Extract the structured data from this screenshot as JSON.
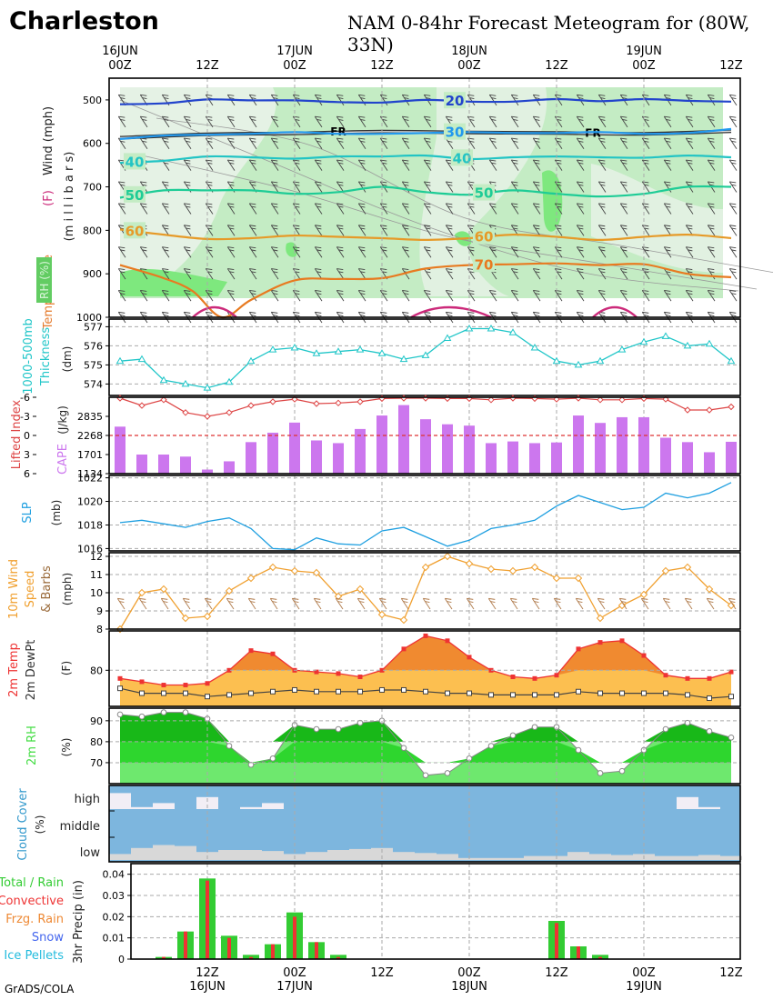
{
  "header": {
    "location": "Charleston",
    "title": "NAM 0-84hr Forecast Meteogram for (80W, 33N)",
    "credit": "GrADS/COLA"
  },
  "time_axis": {
    "top_ticks": [
      {
        "hour": 0,
        "l1": "16JUN",
        "l2": "00Z"
      },
      {
        "hour": 12,
        "l1": "",
        "l2": "12Z"
      },
      {
        "hour": 24,
        "l1": "17JUN",
        "l2": "00Z"
      },
      {
        "hour": 36,
        "l1": "",
        "l2": "12Z"
      },
      {
        "hour": 48,
        "l1": "18JUN",
        "l2": "00Z"
      },
      {
        "hour": 60,
        "l1": "",
        "l2": "12Z"
      },
      {
        "hour": 72,
        "l1": "19JUN",
        "l2": "00Z"
      },
      {
        "hour": 84,
        "l1": "",
        "l2": "12Z"
      }
    ],
    "bottom_ticks": [
      {
        "hour": 12,
        "l1": "12Z",
        "l2": "16JUN"
      },
      {
        "hour": 24,
        "l1": "00Z",
        "l2": "17JUN"
      },
      {
        "hour": 36,
        "l1": "12Z",
        "l2": ""
      },
      {
        "hour": 48,
        "l1": "00Z",
        "l2": "18JUN"
      },
      {
        "hour": 60,
        "l1": "12Z",
        "l2": ""
      },
      {
        "hour": 72,
        "l1": "00Z",
        "l2": "19JUN"
      },
      {
        "hour": 84,
        "l1": "12Z",
        "l2": ""
      }
    ]
  },
  "panel_labels": {
    "p1": {
      "wind": "Wind (mph)",
      "f": "(F)",
      "temperature": "Temperature",
      "mb": "(m i l l i b a r s)",
      "rh": "RH (%)"
    },
    "p2": {
      "l1": "1000-500mb",
      "l2": "Thickness",
      "unit": "(dm)"
    },
    "p3": {
      "li": "Lifted Index",
      "cape": "CAPE",
      "unit": "(J/kg)"
    },
    "p4": {
      "l1": "SLP",
      "unit": "(mb)"
    },
    "p5": {
      "l1": "10m Wind",
      "l2": "Speed",
      "l3": "& Barbs",
      "unit": "(mph)"
    },
    "p6": {
      "l1": "2m Temp",
      "l2": "2m DewPt",
      "unit": "(F)"
    },
    "p7": {
      "l1": "2m RH",
      "unit": "(%)"
    },
    "p8": {
      "l1": "Cloud Cover",
      "unit": "(%)",
      "high": "high",
      "middle": "middle",
      "low": "low"
    },
    "p9": {
      "total": "Total / Rain",
      "conv": "Convective",
      "frzg": "Frzg. Rain",
      "snow": "Snow",
      "ice": "Ice Pellets",
      "y1": "3hr Precip",
      "y2": "(in)"
    }
  },
  "colors": {
    "li": "#dd4444",
    "cape": "#cc77ee",
    "slp": "#1e9fe0",
    "wind": "#f0a030",
    "temp": "#ee3333",
    "temp_fill": "#f08a30",
    "dew_fill": "#fcbf50",
    "rh_light": "#6ee86e",
    "rh_mid": "#2ed62e",
    "rh_dark": "#18b818",
    "thick": "#20c6c8",
    "cloud_bg": "#7db6de",
    "precip_total": "#33cc33",
    "precip_conv": "#ee3333"
  },
  "chart_data": [
    {
      "type": "contour",
      "name": "upper-air",
      "ylabel": "millibars",
      "yticks": [
        500,
        600,
        700,
        800,
        900,
        1000
      ],
      "ylim": [
        1000,
        450
      ],
      "temperature_contours": [
        {
          "label": "20",
          "color": "#2244cc",
          "hours": [
            0,
            6,
            12,
            18,
            24,
            30,
            36,
            42,
            48,
            54,
            60,
            66,
            72,
            78,
            84
          ],
          "mb": [
            510,
            508,
            499,
            501,
            501,
            505,
            506,
            500,
            504,
            504,
            498,
            503,
            498,
            502,
            504
          ]
        },
        {
          "label": "30",
          "color": "#2299ee",
          "hours": [
            0,
            6,
            12,
            18,
            24,
            30,
            36,
            42,
            48,
            54,
            60,
            66,
            72,
            78,
            84
          ],
          "mb": [
            590,
            582,
            580,
            578,
            574,
            578,
            578,
            576,
            574,
            576,
            576,
            574,
            578,
            576,
            567
          ]
        },
        {
          "label": "40",
          "color": "#22c4c4",
          "hours": [
            0,
            6,
            12,
            18,
            24,
            30,
            36,
            42,
            48,
            54,
            60,
            66,
            72,
            78,
            84
          ],
          "mb": [
            645,
            640,
            630,
            632,
            635,
            630,
            630,
            628,
            636,
            632,
            630,
            632,
            633,
            628,
            632
          ]
        },
        {
          "label": "50",
          "color": "#1ecc96",
          "hours": [
            0,
            6,
            12,
            18,
            24,
            30,
            36,
            42,
            48,
            54,
            60,
            66,
            72,
            78,
            84
          ],
          "mb": [
            725,
            708,
            708,
            708,
            716,
            712,
            700,
            712,
            718,
            708,
            716,
            722,
            716,
            700,
            700
          ]
        },
        {
          "label": "60",
          "color": "#e69a28",
          "hours": [
            0,
            6,
            12,
            18,
            24,
            30,
            36,
            42,
            48,
            54,
            60,
            66,
            72,
            78,
            84
          ],
          "mb": [
            798,
            810,
            820,
            818,
            812,
            815,
            818,
            822,
            818,
            810,
            815,
            822,
            815,
            810,
            818
          ]
        },
        {
          "label": "70",
          "color": "#e87a20",
          "hours": [
            0,
            6,
            10,
            14,
            18,
            24,
            30,
            36,
            42,
            48,
            54,
            60,
            66,
            72,
            78,
            84
          ],
          "mb": [
            880,
            910,
            940,
            1000,
            960,
            915,
            912,
            910,
            888,
            880,
            878,
            876,
            880,
            878,
            900,
            908
          ]
        }
      ],
      "freezing_level": {
        "label": "FR",
        "hours": [
          0,
          12,
          24,
          36,
          48,
          60,
          72,
          84
        ],
        "mb": [
          587,
          579,
          577,
          573,
          575,
          576,
          578,
          572
        ]
      }
    },
    {
      "type": "line",
      "name": "1000-500mb thickness",
      "ylabel": "(dm)",
      "yticks": [
        574,
        575,
        576,
        577
      ],
      "ylim": [
        573.4,
        577.4
      ],
      "x": [
        0,
        3,
        6,
        9,
        12,
        15,
        18,
        21,
        24,
        27,
        30,
        33,
        36,
        39,
        42,
        45,
        48,
        51,
        54,
        57,
        60,
        63,
        66,
        69,
        72,
        75,
        78,
        81,
        84
      ],
      "values": [
        575.2,
        575.3,
        574.2,
        574.0,
        573.8,
        574.1,
        575.2,
        575.8,
        575.9,
        575.6,
        575.7,
        575.8,
        575.6,
        575.3,
        575.5,
        576.4,
        576.9,
        576.9,
        576.7,
        575.9,
        575.2,
        575.0,
        575.2,
        575.8,
        576.2,
        576.5,
        576.0,
        576.1,
        575.2
      ]
    },
    {
      "type": "line",
      "name": "Lifted Index",
      "ylabel": "Lifted Index",
      "yticks": [
        -6,
        -3,
        0,
        3,
        6
      ],
      "ylim": [
        6,
        -6
      ],
      "x": [
        0,
        3,
        6,
        9,
        12,
        15,
        18,
        21,
        24,
        27,
        30,
        33,
        36,
        39,
        42,
        45,
        48,
        51,
        54,
        57,
        60,
        63,
        66,
        69,
        72,
        75,
        78,
        81,
        84
      ],
      "values": [
        -6.5,
        -4.7,
        -5.6,
        -3.6,
        -3.0,
        -3.6,
        -4.7,
        -5.3,
        -5.7,
        -5.0,
        -5.1,
        -5.3,
        -5.8,
        -5.9,
        -6.0,
        -5.8,
        -5.8,
        -5.6,
        -5.9,
        -5.8,
        -5.7,
        -5.9,
        -5.6,
        -5.6,
        -5.8,
        -5.7,
        -4.0,
        -4.0,
        -4.5
      ]
    },
    {
      "type": "bar",
      "name": "CAPE",
      "ylabel": "CAPE (J/kg)",
      "yticks": [
        1134,
        1701,
        2268,
        2835
      ],
      "ylim": [
        1134,
        3402
      ],
      "x": [
        0,
        3,
        6,
        9,
        12,
        15,
        18,
        21,
        24,
        27,
        30,
        33,
        36,
        39,
        42,
        45,
        48,
        51,
        54,
        57,
        60,
        63,
        66,
        69,
        72,
        75,
        78,
        81,
        84
      ],
      "values": [
        2530,
        1701,
        1701,
        1640,
        1255,
        1500,
        2070,
        2350,
        2650,
        2120,
        2040,
        2460,
        2860,
        3170,
        2750,
        2600,
        2560,
        2040,
        2090,
        2040,
        2060,
        2860,
        2640,
        2810,
        2810,
        2200,
        2070,
        1770,
        2080
      ]
    },
    {
      "type": "line",
      "name": "SLP",
      "ylabel": "(mb)",
      "yticks": [
        1016,
        1018,
        1020,
        1022
      ],
      "ylim": [
        1015.8,
        1022.2
      ],
      "x": [
        0,
        3,
        6,
        9,
        12,
        15,
        18,
        21,
        24,
        27,
        30,
        33,
        36,
        39,
        42,
        45,
        48,
        51,
        54,
        57,
        60,
        63,
        66,
        69,
        72,
        75,
        78,
        81,
        84
      ],
      "values": [
        1018.2,
        1018.4,
        1018.1,
        1017.8,
        1018.3,
        1018.6,
        1017.7,
        1016.0,
        1015.9,
        1016.9,
        1016.4,
        1016.3,
        1017.5,
        1017.8,
        1017.0,
        1016.2,
        1016.7,
        1017.7,
        1018.0,
        1018.4,
        1019.6,
        1020.5,
        1019.9,
        1019.3,
        1019.5,
        1020.7,
        1020.3,
        1020.7,
        1021.6
      ]
    },
    {
      "type": "line",
      "name": "10m Wind Speed",
      "ylabel": "(mph)",
      "yticks": [
        8,
        9,
        10,
        11,
        12
      ],
      "ylim": [
        8,
        12.2
      ],
      "x": [
        0,
        3,
        6,
        9,
        12,
        15,
        18,
        21,
        24,
        27,
        30,
        33,
        36,
        39,
        42,
        45,
        48,
        51,
        54,
        57,
        60,
        63,
        66,
        69,
        72,
        75,
        78,
        81,
        84
      ],
      "values": [
        8.0,
        10.0,
        10.2,
        8.6,
        8.7,
        10.1,
        10.8,
        11.4,
        11.2,
        11.1,
        9.8,
        10.2,
        8.8,
        8.5,
        11.4,
        12.0,
        11.6,
        11.3,
        11.2,
        11.4,
        10.8,
        10.8,
        8.6,
        9.3,
        9.9,
        11.2,
        11.4,
        10.2,
        9.3
      ]
    },
    {
      "type": "area",
      "name": "2m Temp & DewPt",
      "ylabel": "(F)",
      "yticks": [
        80
      ],
      "ylim": [
        69,
        92
      ],
      "x": [
        0,
        3,
        6,
        9,
        12,
        15,
        18,
        21,
        24,
        27,
        30,
        33,
        36,
        39,
        42,
        45,
        48,
        51,
        54,
        57,
        60,
        63,
        66,
        69,
        72,
        75,
        78,
        81,
        84
      ],
      "series": [
        {
          "name": "2m Temp",
          "values": [
            77.5,
            76.5,
            75.5,
            75.5,
            76.0,
            80.0,
            86.0,
            85.0,
            80.0,
            79.5,
            79.0,
            78.0,
            80.0,
            86.5,
            90.5,
            89.0,
            84.0,
            80.0,
            78.0,
            77.5,
            78.5,
            86.5,
            88.5,
            89.0,
            84.5,
            78.5,
            77.5,
            77.5,
            79.5
          ]
        },
        {
          "name": "2m DewPt",
          "values": [
            74.5,
            73.0,
            73.0,
            73.0,
            72.0,
            72.5,
            73.0,
            73.5,
            74.0,
            73.5,
            73.5,
            73.5,
            74.0,
            74.0,
            73.5,
            73.0,
            73.0,
            72.5,
            72.5,
            72.5,
            72.5,
            73.5,
            73.0,
            73.0,
            73.0,
            73.0,
            72.5,
            71.5,
            72.0
          ]
        }
      ]
    },
    {
      "type": "area",
      "name": "2m RH",
      "ylabel": "(%)",
      "yticks": [
        70,
        80,
        90
      ],
      "ylim": [
        60,
        96
      ],
      "x": [
        0,
        3,
        6,
        9,
        12,
        15,
        18,
        21,
        24,
        27,
        30,
        33,
        36,
        39,
        42,
        45,
        48,
        51,
        54,
        57,
        60,
        63,
        66,
        69,
        72,
        75,
        78,
        81,
        84
      ],
      "values": [
        93,
        92,
        94,
        94,
        91,
        78,
        69,
        72,
        88,
        86,
        86,
        89,
        90,
        77,
        64,
        65,
        72,
        78,
        83,
        87,
        87,
        76,
        65,
        66,
        76,
        86,
        89,
        85,
        82
      ]
    },
    {
      "type": "area",
      "name": "Cloud Cover",
      "ylabel": "(%)",
      "categories": [
        "high",
        "middle",
        "low"
      ],
      "x": [
        0,
        3,
        6,
        9,
        12,
        15,
        18,
        21,
        24,
        27,
        30,
        33,
        36,
        39,
        42,
        45,
        48,
        51,
        54,
        57,
        60,
        63,
        66,
        69,
        72,
        75,
        78,
        81,
        84
      ],
      "series": [
        {
          "name": "high",
          "values": [
            80,
            10,
            30,
            0,
            60,
            0,
            10,
            30,
            0,
            0,
            0,
            0,
            0,
            0,
            0,
            0,
            0,
            0,
            0,
            0,
            0,
            0,
            0,
            0,
            0,
            0,
            60,
            10,
            0
          ]
        },
        {
          "name": "middle",
          "values": [
            0,
            0,
            0,
            0,
            0,
            0,
            0,
            0,
            0,
            0,
            0,
            0,
            0,
            0,
            0,
            0,
            0,
            0,
            0,
            0,
            0,
            0,
            0,
            0,
            0,
            0,
            0,
            0,
            0
          ]
        },
        {
          "name": "low",
          "values": [
            30,
            60,
            75,
            70,
            40,
            50,
            50,
            45,
            30,
            40,
            50,
            55,
            60,
            40,
            35,
            30,
            10,
            10,
            10,
            20,
            20,
            40,
            30,
            25,
            30,
            20,
            20,
            25,
            20
          ]
        }
      ]
    },
    {
      "type": "bar",
      "name": "3hr Precip",
      "ylabel": "3hr Precip (in)",
      "yticks": [
        0,
        0.01,
        0.02,
        0.03,
        0.04
      ],
      "ylim": [
        0,
        0.045
      ],
      "x": [
        6,
        9,
        12,
        15,
        18,
        21,
        24,
        27,
        30,
        33,
        36,
        39,
        42,
        45,
        48,
        51,
        54,
        57,
        60,
        63,
        66,
        69,
        72,
        75,
        78,
        81,
        84
      ],
      "series": [
        {
          "name": "Total / Rain",
          "values": [
            0.001,
            0.013,
            0.038,
            0.011,
            0.002,
            0.007,
            0.022,
            0.008,
            0.002,
            0,
            0,
            0,
            0,
            0,
            0,
            0,
            0,
            0,
            0.018,
            0.006,
            0.002,
            0,
            0,
            0,
            0,
            0,
            0
          ]
        },
        {
          "name": "Convective",
          "values": [
            0.001,
            0.013,
            0.037,
            0.01,
            0.001,
            0.007,
            0.02,
            0.008,
            0.001,
            0,
            0,
            0,
            0,
            0,
            0,
            0,
            0,
            0,
            0.017,
            0.006,
            0.001,
            0,
            0,
            0,
            0,
            0,
            0
          ]
        }
      ]
    }
  ]
}
